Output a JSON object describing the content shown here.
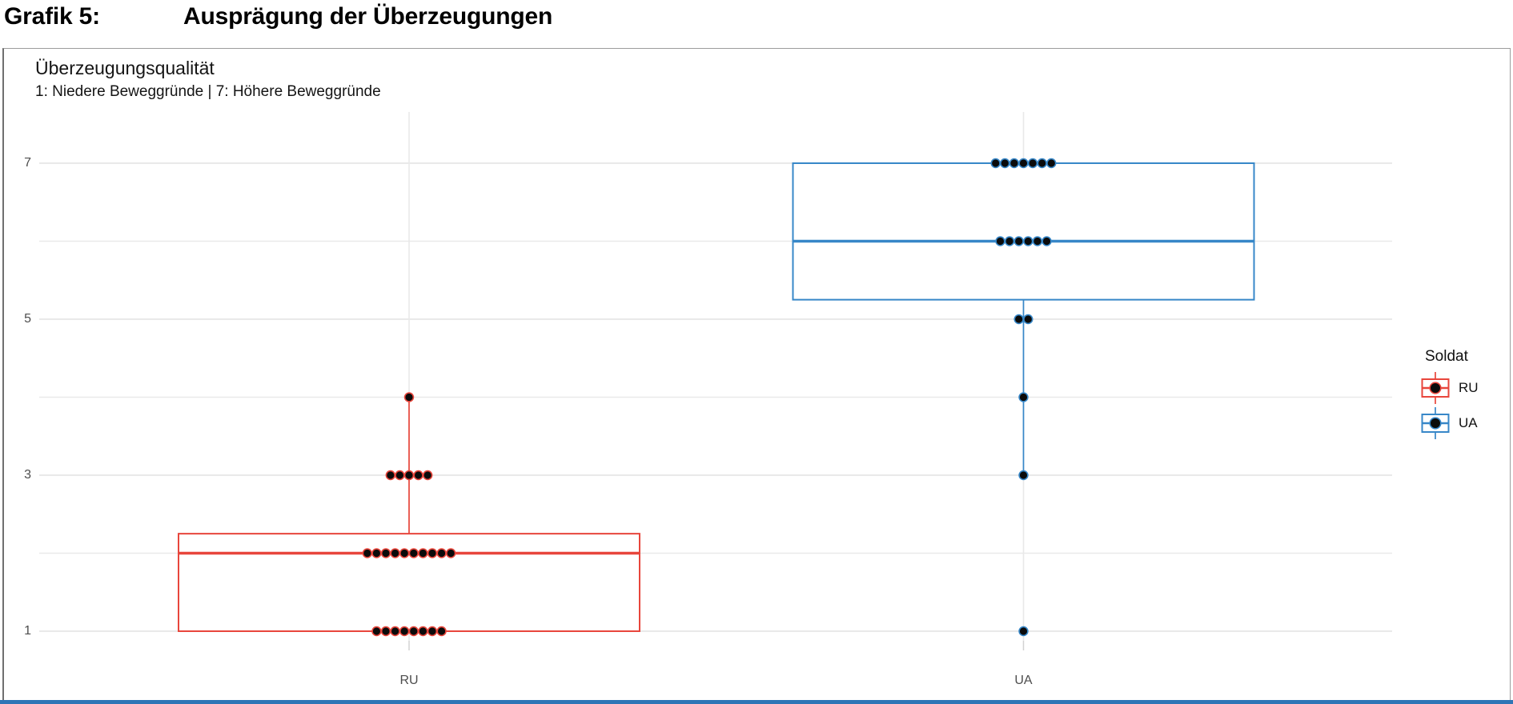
{
  "figure": {
    "label": "Grafik 5:",
    "title": "Ausprägung der Überzeugungen"
  },
  "chart": {
    "title": "Überzeugungsqualität",
    "subtitle": "1: Niedere Beweggründe | 7: Höhere Beweggründe"
  },
  "legend": {
    "title": "Soldat",
    "entries": [
      {
        "label": "RU",
        "color": "#E8463C"
      },
      {
        "label": "UA",
        "color": "#3787C8"
      }
    ]
  },
  "chart_data": {
    "type": "boxplot",
    "title": "Überzeugungsqualität",
    "subtitle": "1: Niedere Beweggründe | 7: Höhere Beweggründe",
    "categories": [
      "RU",
      "UA"
    ],
    "y_ticks": [
      7,
      5,
      3,
      1
    ],
    "ylim": [
      0.6,
      7.65
    ],
    "grid": "light horizontal gridlines at integers 1-7, vertical gridline at each category center",
    "legend_position": "right",
    "legend_title": "Soldat",
    "point_color": "#0b0b0b",
    "gridline_color": "#e9e9e9",
    "series": [
      {
        "name": "RU",
        "color": "#E8463C",
        "q1": 1,
        "median": 2,
        "q3": 2.25,
        "whisker_low": 1,
        "whisker_high": 4,
        "outliers": [],
        "data_points": [
          {
            "value": 1,
            "count": 8
          },
          {
            "value": 2,
            "count": 10
          },
          {
            "value": 3,
            "count": 5
          },
          {
            "value": 4,
            "count": 1
          }
        ]
      },
      {
        "name": "UA",
        "color": "#3787C8",
        "q1": 5.25,
        "median": 6,
        "q3": 7,
        "whisker_low": 3,
        "whisker_high": 7,
        "outliers": [
          1
        ],
        "data_points": [
          {
            "value": 1,
            "count": 1
          },
          {
            "value": 3,
            "count": 1
          },
          {
            "value": 4,
            "count": 1
          },
          {
            "value": 5,
            "count": 2
          },
          {
            "value": 6,
            "count": 6
          },
          {
            "value": 7,
            "count": 7
          }
        ]
      }
    ]
  }
}
